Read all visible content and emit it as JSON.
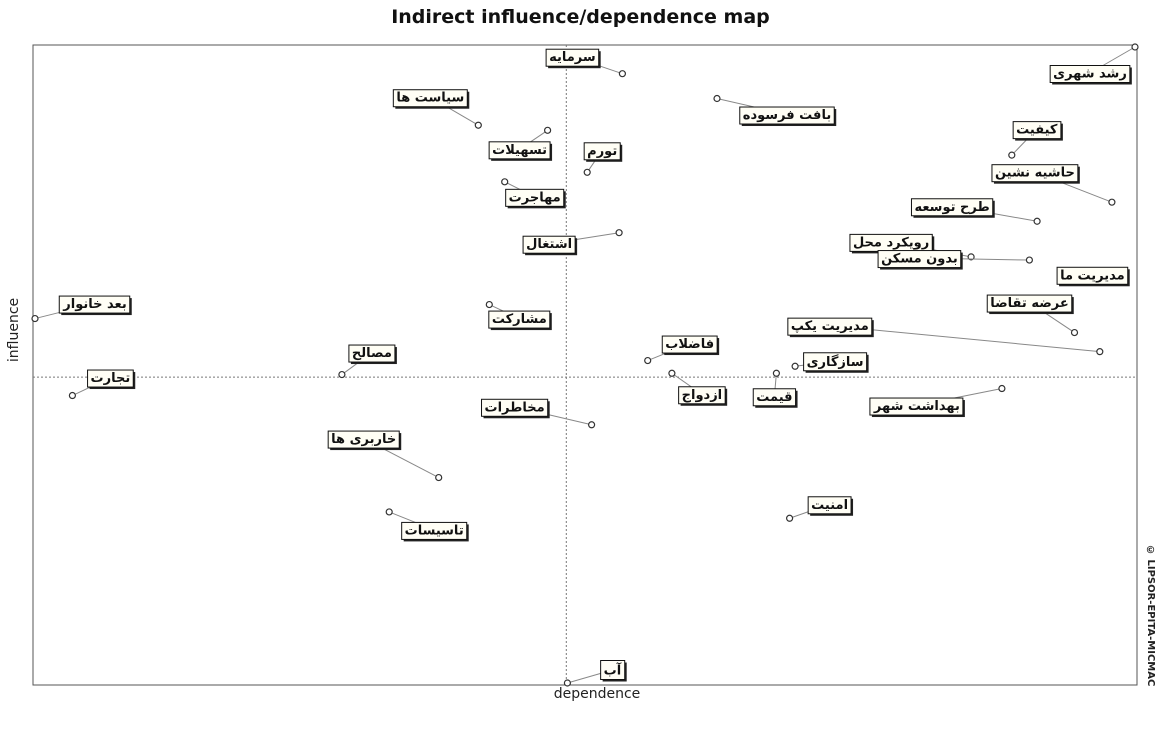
{
  "chart_data": {
    "type": "scatter",
    "title": "Indirect influence/dependence map",
    "xlabel": "dependence",
    "ylabel": "influence",
    "xlim": [
      0,
      100
    ],
    "ylim": [
      0,
      100
    ],
    "axis_cross": {
      "x": 48.3,
      "y": 48.1
    },
    "grid": false,
    "points": [
      {
        "label": "رشد شهری",
        "x": 100.0,
        "y": 100.0
      },
      {
        "label": "سرمایه",
        "x": 53.4,
        "y": 95.8
      },
      {
        "label": "بافت فرسوده",
        "x": 62.0,
        "y": 91.9
      },
      {
        "label": "سیاست ها",
        "x": 40.3,
        "y": 87.7
      },
      {
        "label": "تسهیلات",
        "x": 46.6,
        "y": 86.9
      },
      {
        "label": "کیفیت",
        "x": 88.8,
        "y": 83.0
      },
      {
        "label": "تورم",
        "x": 50.2,
        "y": 80.3
      },
      {
        "label": "مهاجرت",
        "x": 42.7,
        "y": 78.8
      },
      {
        "label": "حاشیه نشین",
        "x": 97.9,
        "y": 75.6
      },
      {
        "label": "طرح توسعه",
        "x": 91.1,
        "y": 72.6
      },
      {
        "label": "اشتغال",
        "x": 53.1,
        "y": 70.8
      },
      {
        "label": "رویکرد محل",
        "x": 85.1,
        "y": 67.0
      },
      {
        "label": "بدون مسکن",
        "x": 90.4,
        "y": 66.5
      },
      {
        "label": "مدیریت ما",
        "x": 93.4,
        "y": 64.5
      },
      {
        "label": "بعد خانوار",
        "x": 0.0,
        "y": 57.3
      },
      {
        "label": "مشارکت",
        "x": 41.3,
        "y": 59.5
      },
      {
        "label": "عرضه تقاضا",
        "x": 94.5,
        "y": 55.1
      },
      {
        "label": "مدیریت یکپ",
        "x": 96.8,
        "y": 52.1
      },
      {
        "label": "فاضلاب",
        "x": 55.7,
        "y": 50.7
      },
      {
        "label": "سازگاری",
        "x": 69.1,
        "y": 49.8
      },
      {
        "label": "مصالح",
        "x": 27.9,
        "y": 48.5
      },
      {
        "label": "تجارت",
        "x": 3.4,
        "y": 45.2
      },
      {
        "label": "ازدواج",
        "x": 57.9,
        "y": 48.7
      },
      {
        "label": "قیمت",
        "x": 67.4,
        "y": 48.7
      },
      {
        "label": "بهداشت شهر",
        "x": 87.9,
        "y": 46.3
      },
      {
        "label": "مخاطرات",
        "x": 50.6,
        "y": 40.6
      },
      {
        "label": "خاربری ها",
        "x": 36.7,
        "y": 32.3
      },
      {
        "label": "تاسیسات",
        "x": 32.2,
        "y": 26.9
      },
      {
        "label": "امنیت",
        "x": 68.6,
        "y": 25.9
      },
      {
        "label": "آب",
        "x": 48.4,
        "y": 0.0
      }
    ]
  },
  "copyright": "© LIPSOR-EPITA-MICMAC"
}
